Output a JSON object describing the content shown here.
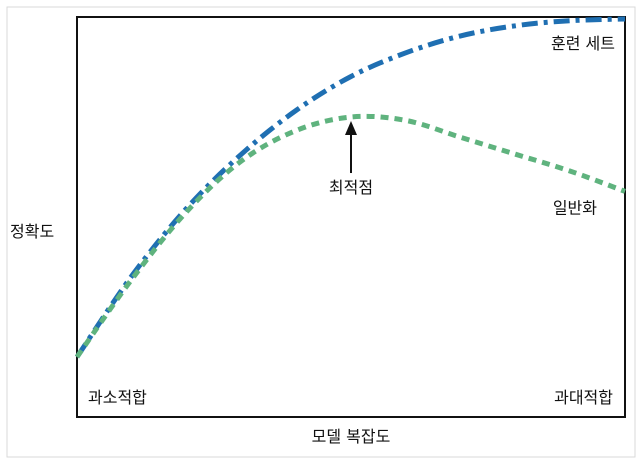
{
  "chart_data": {
    "type": "line",
    "title": "",
    "xlabel": "모델 복잡도",
    "ylabel": "정확도",
    "x_ticks": [],
    "y_ticks": [],
    "xlim": [
      0,
      100
    ],
    "ylim": [
      0,
      100
    ],
    "grid": false,
    "series": [
      {
        "name": "훈련 세트",
        "style": "dash-dot",
        "color": "#1f6fb2",
        "x": [
          0,
          10,
          20,
          30,
          40,
          50,
          60,
          70,
          80,
          90,
          100
        ],
        "y": [
          0,
          24,
          44,
          60,
          73,
          83,
          90,
          95,
          98,
          99.5,
          100
        ]
      },
      {
        "name": "일반화",
        "style": "dashed",
        "color": "#5fb37e",
        "x": [
          0,
          10,
          20,
          30,
          40,
          50,
          60,
          70,
          80,
          90,
          100
        ],
        "y": [
          0,
          23,
          43,
          58,
          67,
          71,
          70,
          65,
          60,
          55,
          49
        ]
      }
    ],
    "annotations": {
      "underfit": "과소적합",
      "overfit": "과대적합",
      "optimum": "최적점",
      "optimum_x": 50
    }
  }
}
